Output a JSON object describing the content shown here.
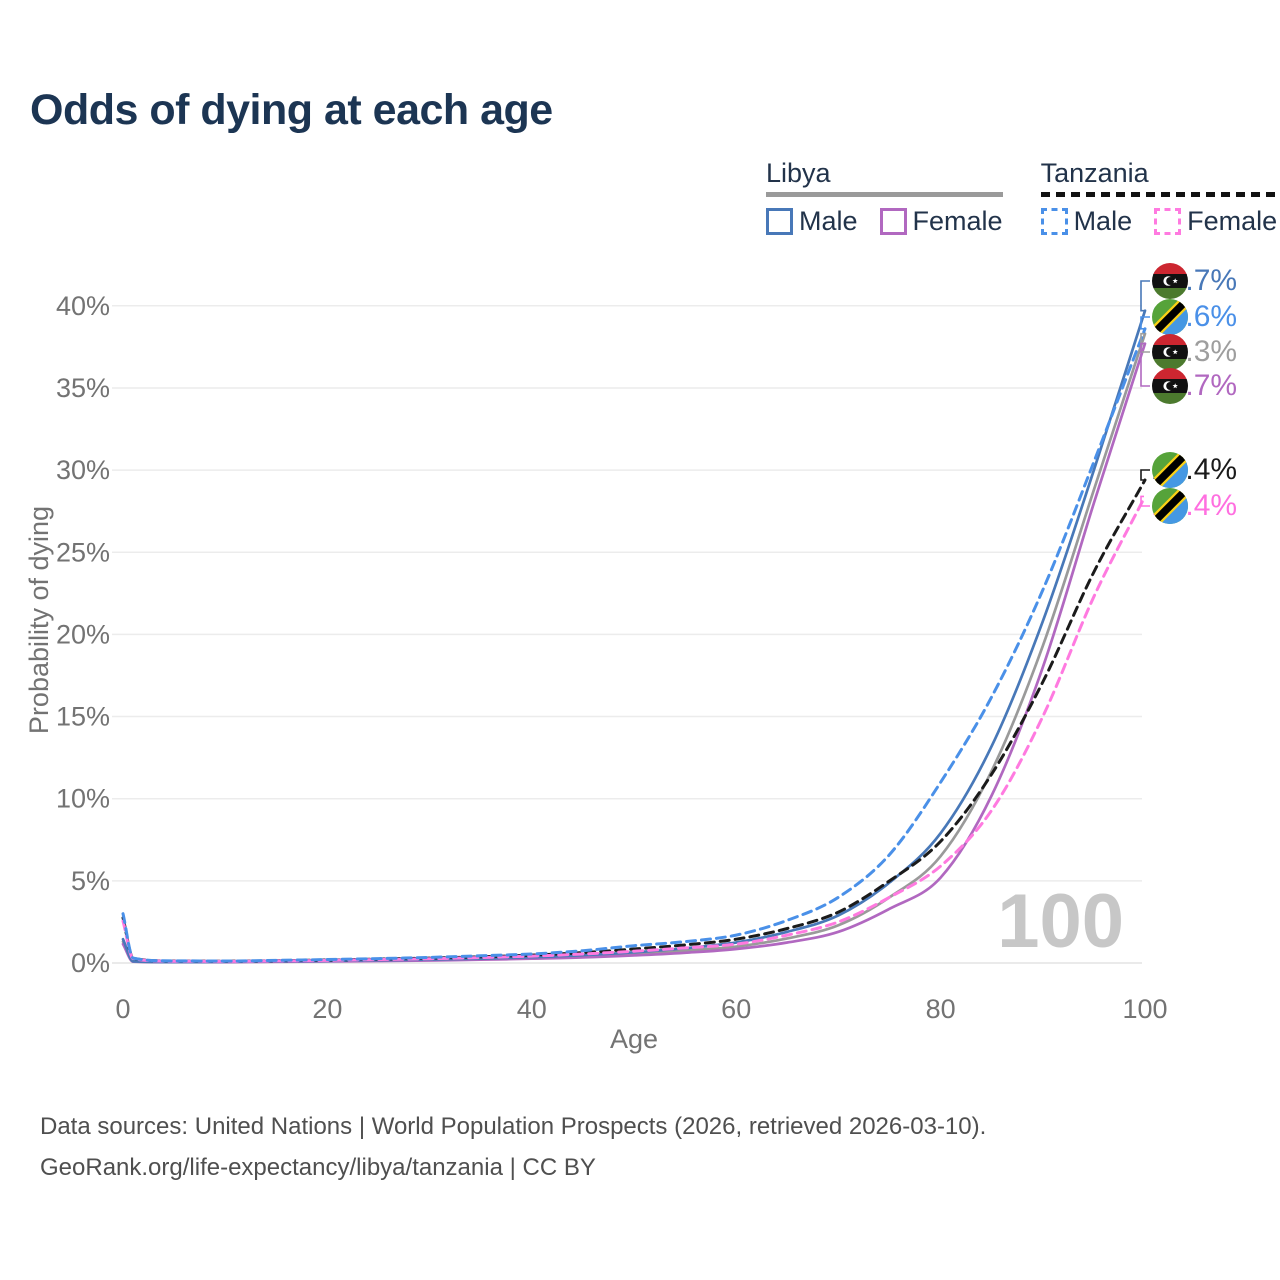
{
  "title": "Odds of dying at each age",
  "legend": {
    "groups": [
      {
        "country": "Libya",
        "line_style": "solid",
        "items": [
          {
            "label": "Male",
            "color": "#4878b8",
            "series": "libya_male"
          },
          {
            "label": "Female",
            "color": "#b168c0",
            "series": "libya_female"
          }
        ]
      },
      {
        "country": "Tanzania",
        "line_style": "dashed",
        "items": [
          {
            "label": "Male",
            "color": "#4a90e8",
            "series": "tanzania_male"
          },
          {
            "label": "Female",
            "color": "#ff7ae0",
            "series": "tanzania_female"
          }
        ]
      }
    ]
  },
  "chart_data": {
    "type": "line",
    "title": "Odds of dying at each age",
    "xlabel": "Age",
    "ylabel": "Probability of dying",
    "xlim": [
      0,
      100
    ],
    "ylim": [
      0,
      42
    ],
    "x_ticks": [
      0,
      20,
      40,
      60,
      80,
      100
    ],
    "y_ticks": [
      0,
      5,
      10,
      15,
      20,
      25,
      30,
      35,
      40
    ],
    "y_tick_suffix": "%",
    "grid": "horizontal",
    "legend_position": "top-right",
    "watermark": "100",
    "ages": [
      0,
      1,
      5,
      10,
      15,
      20,
      25,
      30,
      35,
      40,
      45,
      50,
      55,
      60,
      65,
      70,
      75,
      80,
      85,
      90,
      95,
      100
    ],
    "series": [
      {
        "name": "Libya Total",
        "key": "libya_total",
        "country": "libya",
        "color": "#9a9a9a",
        "dash": false,
        "values": [
          1.3,
          0.09,
          0.055,
          0.06,
          0.085,
          0.11,
          0.14,
          0.18,
          0.23,
          0.3,
          0.4,
          0.55,
          0.75,
          1.0,
          1.5,
          2.3,
          4.0,
          6.5,
          11.7,
          19.3,
          28.8,
          38.3
        ],
        "end_label": "38.3%"
      },
      {
        "name": "Libya Female",
        "key": "libya_female",
        "country": "libya",
        "color": "#b168c0",
        "dash": false,
        "values": [
          1.15,
          0.08,
          0.05,
          0.055,
          0.075,
          0.095,
          0.12,
          0.15,
          0.2,
          0.26,
          0.34,
          0.46,
          0.62,
          0.85,
          1.25,
          1.9,
          3.3,
          5.2,
          10.2,
          18.0,
          28.0,
          37.7
        ],
        "end_label": "37.7%"
      },
      {
        "name": "Libya Male",
        "key": "libya_male",
        "country": "libya",
        "color": "#4878b8",
        "dash": false,
        "values": [
          1.45,
          0.1,
          0.06,
          0.07,
          0.1,
          0.13,
          0.17,
          0.21,
          0.27,
          0.35,
          0.48,
          0.65,
          0.9,
          1.25,
          1.9,
          2.9,
          4.9,
          7.9,
          13.2,
          20.8,
          30.0,
          39.7
        ],
        "end_label": "39.7%"
      },
      {
        "name": "Tanzania Total",
        "key": "tanzania_total",
        "country": "tanzania",
        "color": "#1b1b1b",
        "dash": true,
        "values": [
          2.75,
          0.28,
          0.12,
          0.11,
          0.14,
          0.18,
          0.24,
          0.3,
          0.38,
          0.48,
          0.63,
          0.85,
          1.1,
          1.45,
          2.1,
          3.1,
          5.0,
          7.4,
          11.5,
          17.1,
          23.8,
          29.4
        ],
        "end_label": "29.4%"
      },
      {
        "name": "Tanzania Female",
        "key": "tanzania_female",
        "country": "tanzania",
        "color": "#ff7ae0",
        "dash": true,
        "values": [
          2.55,
          0.26,
          0.11,
          0.1,
          0.125,
          0.16,
          0.21,
          0.26,
          0.33,
          0.42,
          0.55,
          0.72,
          0.92,
          1.15,
          1.7,
          2.5,
          4.0,
          5.9,
          9.3,
          15.0,
          22.3,
          28.4
        ],
        "end_label": "28.4%"
      },
      {
        "name": "Tanzania Male",
        "key": "tanzania_male",
        "country": "tanzania",
        "color": "#4a90e8",
        "dash": true,
        "values": [
          3.0,
          0.3,
          0.13,
          0.12,
          0.16,
          0.21,
          0.27,
          0.34,
          0.44,
          0.55,
          0.75,
          1.05,
          1.3,
          1.7,
          2.6,
          4.0,
          6.6,
          11.0,
          16.2,
          22.7,
          30.5,
          38.6
        ],
        "end_label": "38.6%"
      }
    ],
    "end_labels": [
      {
        "series": "libya_male",
        "flag": "libya",
        "text": "39.7%",
        "value": 39.7,
        "color": "#4878b8"
      },
      {
        "series": "tanzania_male",
        "flag": "tanzania",
        "text": "38.6%",
        "value": 38.6,
        "color": "#4a90e8"
      },
      {
        "series": "libya_total",
        "flag": "libya",
        "text": "38.3%",
        "value": 38.3,
        "color": "#9e9e9e"
      },
      {
        "series": "libya_female",
        "flag": "libya",
        "text": "37.7%",
        "value": 37.7,
        "color": "#b168c0"
      },
      {
        "series": "tanzania_total",
        "flag": "tanzania",
        "text": "29.4%",
        "value": 29.4,
        "color": "#1b1b1b"
      },
      {
        "series": "tanzania_female",
        "flag": "tanzania",
        "text": "28.4%",
        "value": 28.4,
        "color": "#ff6fe0"
      }
    ]
  },
  "footer": {
    "line1": "Data sources: United Nations | World Population Prospects (2026, retrieved 2026-03-10).",
    "line2": "GeoRank.org/life-expectancy/libya/tanzania | CC BY"
  }
}
